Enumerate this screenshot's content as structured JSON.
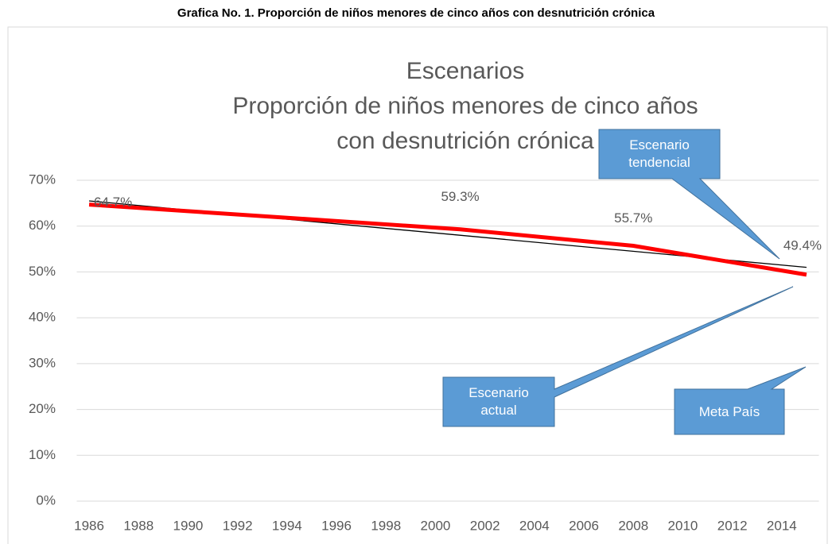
{
  "heading": "Grafica No. 1. Proporción de niños menores de cinco años con desnutrición crónica",
  "chart_data": {
    "type": "line",
    "title": "Escenarios",
    "subtitle": "Proporción de niños menores de cinco años con desnutrición crónica",
    "series": [
      {
        "color": "#ff0000",
        "x": [
          1986,
          2001,
          2008,
          2015
        ],
        "values": [
          64.7,
          59.3,
          55.7,
          49.4
        ],
        "value_labels": [
          "64.7%",
          "59.3%",
          "55.7%",
          "49.4%"
        ]
      },
      {
        "color": "#000000",
        "x": [
          1986,
          2015
        ],
        "values": [
          65.5,
          51
        ]
      }
    ],
    "xlim": [
      1985.5,
      2015.5
    ],
    "xticks": [
      1986,
      1988,
      1990,
      1992,
      1994,
      1996,
      1998,
      2000,
      2002,
      2004,
      2006,
      2008,
      2010,
      2012,
      2014
    ],
    "ylim": [
      0,
      70
    ],
    "yticks": [
      {
        "value": 0,
        "label": "0%"
      },
      {
        "value": 10,
        "label": "10%"
      },
      {
        "value": 20,
        "label": "20%"
      },
      {
        "value": 30,
        "label": "30%"
      },
      {
        "value": 40,
        "label": "40%"
      },
      {
        "value": 50,
        "label": "50%"
      },
      {
        "value": 60,
        "label": "60%"
      },
      {
        "value": 70,
        "label": "70%"
      }
    ],
    "grid": true,
    "annotations": [
      "Escenario tendencial",
      "Escenario actual",
      "Meta País"
    ]
  }
}
